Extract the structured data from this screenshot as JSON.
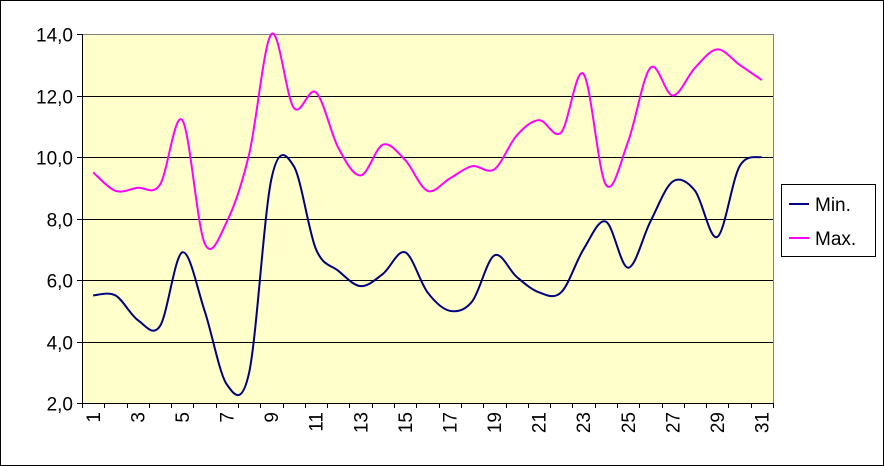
{
  "chart_data": {
    "type": "line",
    "title": "",
    "xlabel": "",
    "ylabel": "",
    "categories": [
      "1",
      "2",
      "3",
      "4",
      "5",
      "6",
      "7",
      "8",
      "9",
      "10",
      "11",
      "12",
      "13",
      "14",
      "15",
      "16",
      "17",
      "18",
      "19",
      "20",
      "21",
      "22",
      "23",
      "24",
      "25",
      "26",
      "27",
      "28",
      "29",
      "30",
      "31"
    ],
    "x_tick_labels": [
      "1",
      "3",
      "5",
      "7",
      "9",
      "11",
      "13",
      "15",
      "17",
      "19",
      "21",
      "23",
      "25",
      "27",
      "29",
      "31"
    ],
    "y_tick_labels": [
      "2,0",
      "4,0",
      "6,0",
      "8,0",
      "10,0",
      "12,0",
      "14,0"
    ],
    "ylim": [
      2.0,
      14.0
    ],
    "y_step": 2.0,
    "grid": "horizontal",
    "legend_position": "right",
    "plot_background": "#ffffcc",
    "series": [
      {
        "name": "Min.",
        "color": "#000080",
        "values": [
          5.5,
          5.5,
          4.7,
          4.5,
          6.9,
          5.0,
          2.6,
          3.0,
          9.3,
          9.7,
          7.0,
          6.3,
          5.8,
          6.2,
          6.9,
          5.6,
          5.0,
          5.3,
          6.8,
          6.1,
          5.6,
          5.6,
          7.0,
          7.9,
          6.4,
          7.9,
          9.2,
          8.9,
          7.4,
          9.7,
          10.0
        ]
      },
      {
        "name": "Max.",
        "color": "#ff00ff",
        "values": [
          9.5,
          8.9,
          9.0,
          9.1,
          11.2,
          7.2,
          7.9,
          10.1,
          14.0,
          11.6,
          12.1,
          10.3,
          9.4,
          10.4,
          9.9,
          8.9,
          9.3,
          9.7,
          9.6,
          10.7,
          11.2,
          10.8,
          12.7,
          9.1,
          10.5,
          12.9,
          12.0,
          12.9,
          13.5,
          13.0,
          12.5
        ]
      }
    ]
  }
}
